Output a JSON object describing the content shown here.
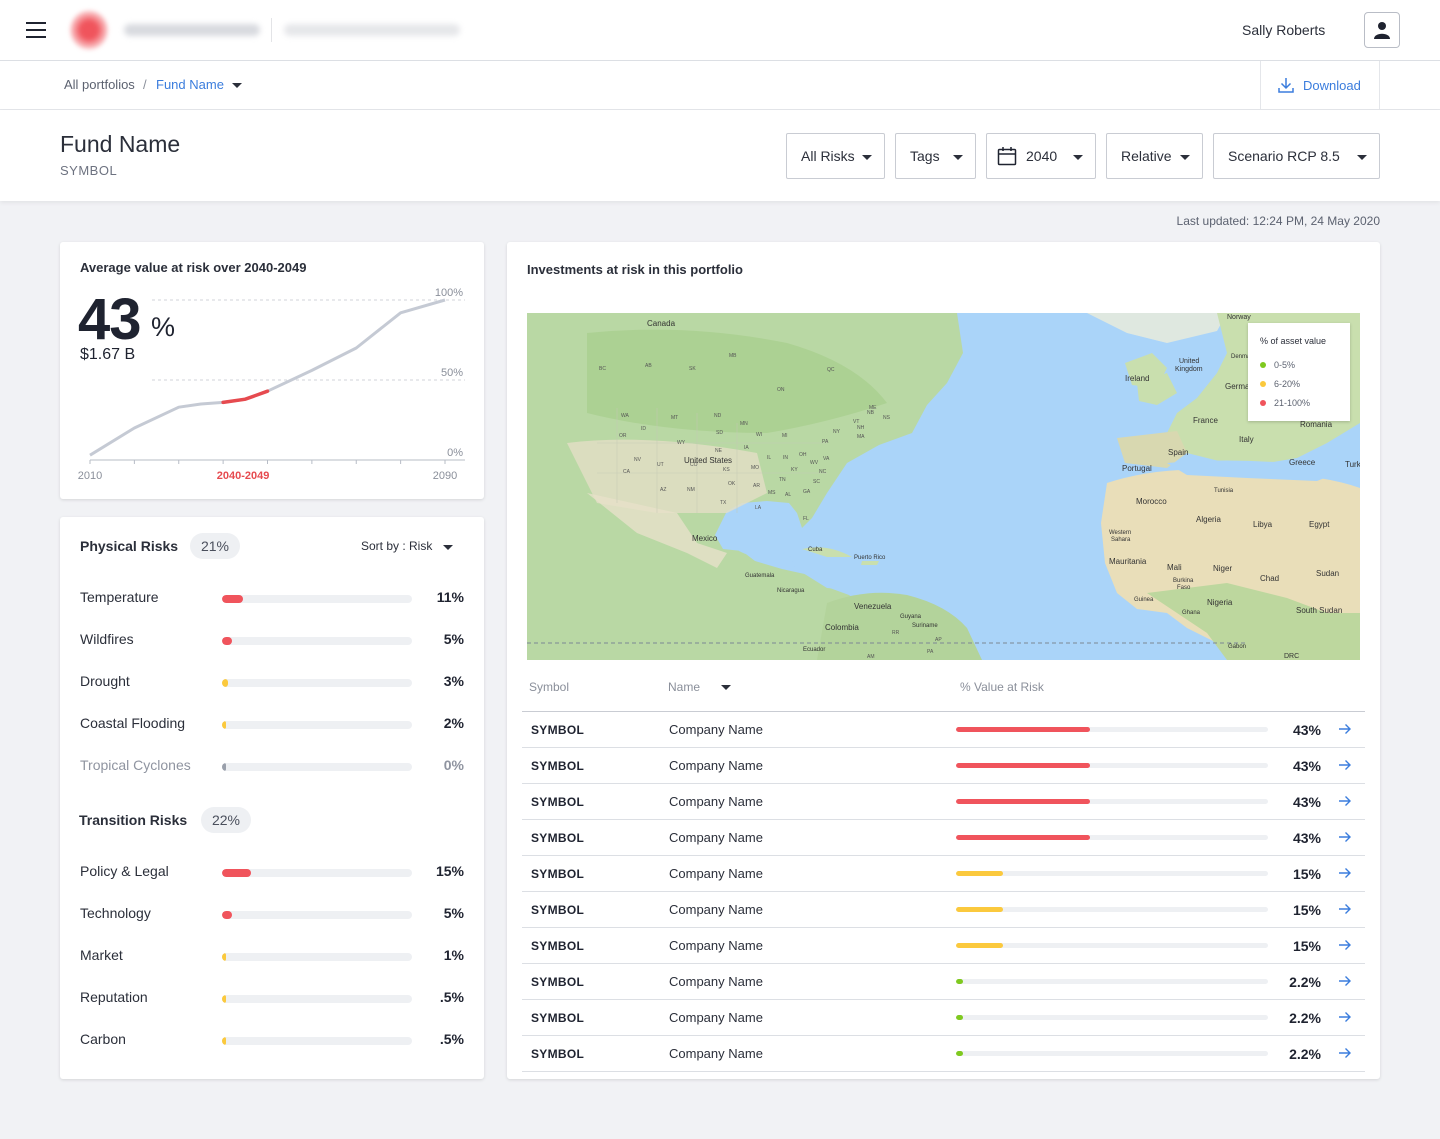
{
  "user": {
    "name": "Sally Roberts"
  },
  "breadcrumb": {
    "all": "All portfolios",
    "separator": "/",
    "current": "Fund Name"
  },
  "download_label": "Download",
  "fund": {
    "name": "Fund Name",
    "symbol": "SYMBOL"
  },
  "filters": {
    "risks": "All Risks",
    "tags": "Tags",
    "year": "2040",
    "mode": "Relative",
    "scenario": "Scenario RCP 8.5"
  },
  "last_updated": "Last updated: 12:24 PM, 24 May 2020",
  "avg_card": {
    "title": "Average value at risk over 2040-2049",
    "percent": "43",
    "percent_sign": "%",
    "money": "$1.67 B"
  },
  "chart_data": {
    "type": "line",
    "x_labels": [
      "2010",
      "2040-2049",
      "2090"
    ],
    "y_labels": [
      "100%",
      "50%",
      "0%"
    ],
    "ylim": [
      0,
      100
    ],
    "xlim": [
      2010,
      2090
    ],
    "highlight_range": [
      2040,
      2049
    ],
    "x": [
      2010,
      2020,
      2030,
      2035,
      2040,
      2045,
      2050,
      2060,
      2070,
      2080,
      2090
    ],
    "values": [
      3,
      20,
      33,
      35,
      36,
      38,
      43,
      56,
      70,
      92,
      100
    ],
    "colors": {
      "line": "#c5cad4",
      "highlight": "#e64a4f",
      "grid": "#d0d3da"
    }
  },
  "physical": {
    "title": "Physical Risks",
    "pct": "21%",
    "sort_label": "Sort by : Risk",
    "items": [
      {
        "label": "Temperature",
        "value": "11%",
        "fraction": 0.11,
        "color": "#f0545c",
        "dim": false
      },
      {
        "label": "Wildfires",
        "value": "5%",
        "fraction": 0.05,
        "color": "#f0545c",
        "dim": false
      },
      {
        "label": "Drought",
        "value": "3%",
        "fraction": 0.03,
        "color": "#fbc93d",
        "dim": false
      },
      {
        "label": "Coastal Flooding",
        "value": "2%",
        "fraction": 0.02,
        "color": "#fbc93d",
        "dim": false
      },
      {
        "label": "Tropical Cyclones",
        "value": "0%",
        "fraction": 0.0,
        "color": "#9aa0ab",
        "dim": true
      }
    ]
  },
  "transition": {
    "title": "Transition Risks",
    "pct": "22%",
    "items": [
      {
        "label": "Policy & Legal",
        "value": "15%",
        "fraction": 0.15,
        "color": "#f0545c"
      },
      {
        "label": "Technology",
        "value": "5%",
        "fraction": 0.05,
        "color": "#f0545c"
      },
      {
        "label": "Market",
        "value": "1%",
        "fraction": 0.01,
        "color": "#fbc93d"
      },
      {
        "label": "Reputation",
        "value": ".5%",
        "fraction": 0.005,
        "color": "#fbc93d"
      },
      {
        "label": "Carbon",
        "value": ".5%",
        "fraction": 0.005,
        "color": "#fbc93d"
      }
    ]
  },
  "map_card": {
    "title": "Investments at risk in this portfolio",
    "legend": {
      "title": "% of asset value",
      "items": [
        {
          "label": "0-5%",
          "color": "#7fc91f"
        },
        {
          "label": "6-20%",
          "color": "#fbc93d"
        },
        {
          "label": "21-100%",
          "color": "#f0545c"
        }
      ]
    },
    "places": [
      "Canada",
      "United States",
      "Mexico",
      "Cuba",
      "Puerto Rico",
      "Guatemala",
      "Nicaragua",
      "Venezuela",
      "Colombia",
      "Guyana",
      "Suriname",
      "Ecuador",
      "Ireland",
      "United Kingdom",
      "Denmark",
      "Norway",
      "Germany",
      "France",
      "Italy",
      "Spain",
      "Portugal",
      "Greece",
      "Turkey",
      "Romania",
      "Morocco",
      "Tunisia",
      "Algeria",
      "Libya",
      "Egypt",
      "Western Sahara",
      "Mauritania",
      "Mali",
      "Niger",
      "Chad",
      "Sudan",
      "Burkina Faso",
      "Ghana",
      "Guinea",
      "Nigeria",
      "South Sudan",
      "Gabon",
      "DRC",
      "BC",
      "AB",
      "SK",
      "MB",
      "ON",
      "QC",
      "NB",
      "NS",
      "PE",
      "NL",
      "WA",
      "OR",
      "ID",
      "MT",
      "ND",
      "MN",
      "WY",
      "SD",
      "NE",
      "IA",
      "WI",
      "MI",
      "NV",
      "UT",
      "CO",
      "KS",
      "MO",
      "IL",
      "IN",
      "OH",
      "PA",
      "NY",
      "VT",
      "NH",
      "ME",
      "MA",
      "CA",
      "AZ",
      "NM",
      "OK",
      "AR",
      "TN",
      "KY",
      "WV",
      "VA",
      "NC",
      "SC",
      "GA",
      "AL",
      "MS",
      "LA",
      "TX",
      "FL",
      "RR",
      "AP",
      "PA",
      "AM"
    ]
  },
  "table": {
    "headers": {
      "symbol": "Symbol",
      "name": "Name",
      "var": "% Value at Risk"
    },
    "rows": [
      {
        "symbol": "SYMBOL",
        "name": "Company Name",
        "value": "43%",
        "fraction": 0.43,
        "color": "#f0545c"
      },
      {
        "symbol": "SYMBOL",
        "name": "Company Name",
        "value": "43%",
        "fraction": 0.43,
        "color": "#f0545c"
      },
      {
        "symbol": "SYMBOL",
        "name": "Company Name",
        "value": "43%",
        "fraction": 0.43,
        "color": "#f0545c"
      },
      {
        "symbol": "SYMBOL",
        "name": "Company Name",
        "value": "43%",
        "fraction": 0.43,
        "color": "#f0545c"
      },
      {
        "symbol": "SYMBOL",
        "name": "Company Name",
        "value": "15%",
        "fraction": 0.15,
        "color": "#fbc93d"
      },
      {
        "symbol": "SYMBOL",
        "name": "Company Name",
        "value": "15%",
        "fraction": 0.15,
        "color": "#fbc93d"
      },
      {
        "symbol": "SYMBOL",
        "name": "Company Name",
        "value": "15%",
        "fraction": 0.15,
        "color": "#fbc93d"
      },
      {
        "symbol": "SYMBOL",
        "name": "Company Name",
        "value": "2.2%",
        "fraction": 0.022,
        "color": "#7fc91f"
      },
      {
        "symbol": "SYMBOL",
        "name": "Company Name",
        "value": "2.2%",
        "fraction": 0.022,
        "color": "#7fc91f"
      },
      {
        "symbol": "SYMBOL",
        "name": "Company Name",
        "value": "2.2%",
        "fraction": 0.022,
        "color": "#7fc91f"
      }
    ]
  }
}
